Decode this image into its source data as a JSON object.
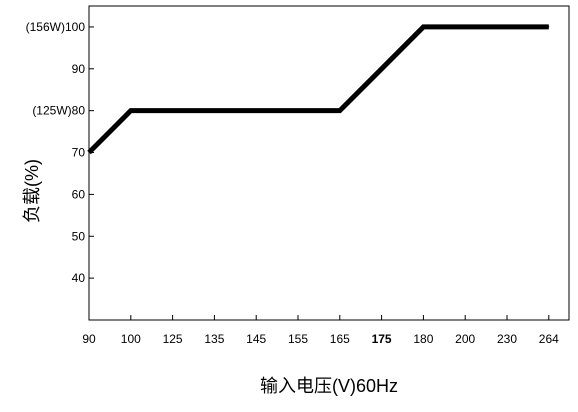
{
  "chart_data": {
    "type": "line",
    "title": "",
    "xlabel": "输入电压(V)60Hz",
    "ylabel": "负载(%)",
    "x_ticks": [
      "90",
      "100",
      "125",
      "135",
      "145",
      "155",
      "165",
      "175",
      "180",
      "200",
      "230",
      "264"
    ],
    "x_tick_emphasis": "175",
    "y_ticks": [
      {
        "value": 40,
        "label": "40"
      },
      {
        "value": 50,
        "label": "50"
      },
      {
        "value": 60,
        "label": "60"
      },
      {
        "value": 70,
        "label": "70"
      },
      {
        "value": 80,
        "label": "(125W)80"
      },
      {
        "value": 90,
        "label": "90"
      },
      {
        "value": 100,
        "label": "(156W)100"
      }
    ],
    "ylim": [
      30,
      105
    ],
    "grid": false,
    "legend": "none",
    "series": [
      {
        "x": [
          "90",
          "100",
          "165",
          "180",
          "264"
        ],
        "values": [
          70,
          80,
          80,
          100,
          100
        ]
      }
    ],
    "colors": {
      "line": "#000000",
      "axis": "#000000",
      "background": "#ffffff"
    }
  }
}
